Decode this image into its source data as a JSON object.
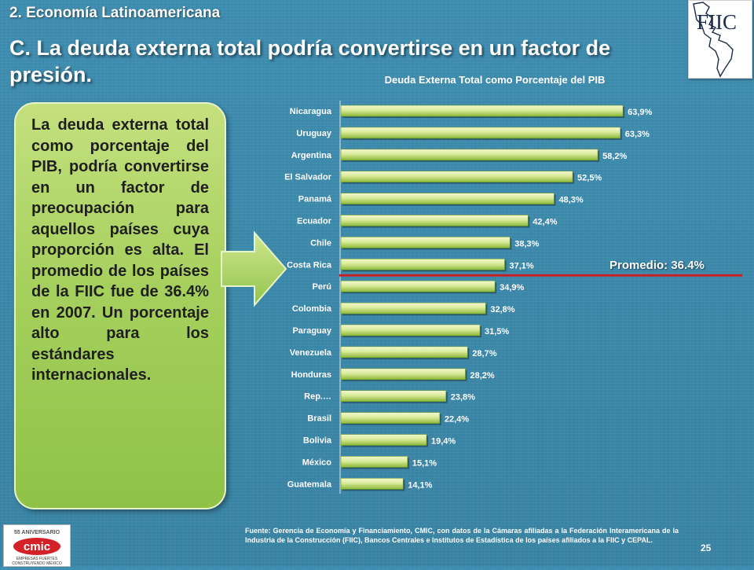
{
  "header": {
    "section": "2. Economía Latinoamericana",
    "title": "C. La deuda externa total podría convertirse en un factor de presión."
  },
  "logo": {
    "text": "FIIC"
  },
  "callout": {
    "text": "La deuda externa total como porcentaje del PIB, podría convertirse en un factor de preocupación para aquellos países cuya proporción es alta. El promedio de los países de la FIIC fue de 36.4% en 2007. Un porcentaje alto para los estándares internacionales."
  },
  "chart_data": {
    "type": "bar",
    "orientation": "horizontal",
    "title": "Deuda Externa Total como Porcentaje del PIB",
    "categories": [
      "Nicaragua",
      "Uruguay",
      "Argentina",
      "El Salvador",
      "Panamá",
      "Ecuador",
      "Chile",
      "Costa Rica",
      "Perú",
      "Colombia",
      "Paraguay",
      "Venezuela",
      "Honduras",
      "Rep.…",
      "Brasil",
      "Bolivia",
      "México",
      "Guatemala"
    ],
    "values": [
      63.9,
      63.3,
      58.2,
      52.5,
      48.3,
      42.4,
      38.3,
      37.1,
      34.9,
      32.8,
      31.5,
      28.7,
      28.2,
      23.8,
      22.4,
      19.4,
      15.1,
      14.1
    ],
    "value_labels": [
      "63,9%",
      "63,3%",
      "58,2%",
      "52,5%",
      "48,3%",
      "42,4%",
      "38,3%",
      "37,1%",
      "34,9%",
      "32,8%",
      "31,5%",
      "28,7%",
      "28,2%",
      "23,8%",
      "22,4%",
      "19,4%",
      "15,1%",
      "14,1%"
    ],
    "xlim": [
      0,
      70
    ],
    "average": {
      "value": 36.4,
      "label": "Promedio: 36.4%"
    },
    "colors": {
      "bar_light": "#f2f7c8",
      "bar_dark": "#8cb83a",
      "average_line": "#c8202a"
    }
  },
  "footer": {
    "source": "Fuente: Gerencia de Economía y Financiamiento, CMIC, con datos de la Cámaras afiliadas a la Federación Interamericana de la Industria de la Construcción (FIIC), Bancos Centrales e Institutos de Estadística de los países afiliados a la FIIC y CEPAL.",
    "page": "25",
    "cmic_anniversary": "55 ANIVERSARIO",
    "cmic_name": "cmic",
    "cmic_tag1": "EMPRESAS FUERTES",
    "cmic_tag2": "CONSTRUYENDO MÉXICO"
  }
}
